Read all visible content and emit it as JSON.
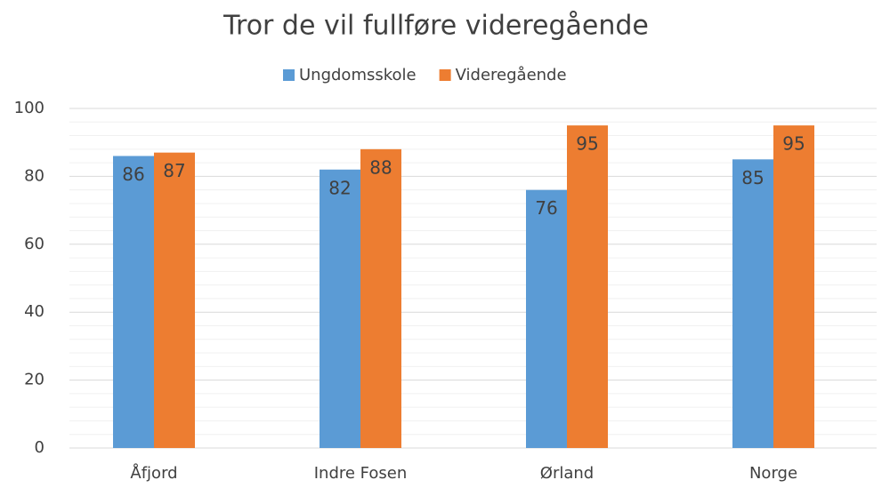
{
  "chart_data": {
    "type": "bar",
    "title": "Tror de vil fullføre videregående",
    "categories": [
      "Åfjord",
      "Indre Fosen",
      "Ørland",
      "Norge"
    ],
    "series": [
      {
        "name": "Ungdomsskole",
        "color": "#5b9bd5",
        "values": [
          86,
          82,
          76,
          85
        ]
      },
      {
        "name": "Videregående",
        "color": "#ed7d31",
        "values": [
          87,
          88,
          95,
          95
        ]
      }
    ],
    "ylim": [
      0,
      100
    ],
    "yticks": [
      0,
      20,
      40,
      60,
      80,
      100
    ],
    "yticks_minor": [
      4,
      8,
      12,
      16,
      24,
      28,
      32,
      36,
      44,
      48,
      52,
      56,
      64,
      68,
      72,
      76,
      84,
      88,
      92,
      96
    ],
    "grid": true,
    "legend": "top",
    "data_labels": true
  }
}
